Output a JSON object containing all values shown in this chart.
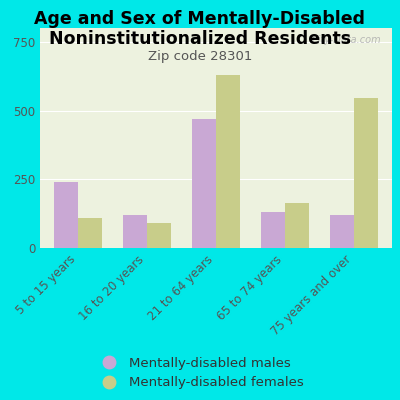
{
  "title_line1": "Age and Sex of Mentally-Disabled",
  "title_line2": "Noninstitutionalized Residents",
  "subtitle": "Zip code 28301",
  "categories": [
    "5 to 15 years",
    "16 to 20 years",
    "21 to 64 years",
    "65 to 74 years",
    "75 years and over"
  ],
  "males": [
    240,
    120,
    470,
    130,
    120
  ],
  "females": [
    110,
    90,
    630,
    165,
    545
  ],
  "male_color": "#c9a8d4",
  "female_color": "#c8cd8a",
  "background_color": "#00e8e8",
  "plot_bg_color": "#edf2df",
  "ylim": [
    0,
    800
  ],
  "yticks": [
    0,
    250,
    500,
    750
  ],
  "watermark": "City-Data.com",
  "legend_male": "Mentally-disabled males",
  "legend_female": "Mentally-disabled females",
  "title_fontsize": 12.5,
  "subtitle_fontsize": 9.5,
  "tick_fontsize": 8.5,
  "legend_fontsize": 9.5
}
